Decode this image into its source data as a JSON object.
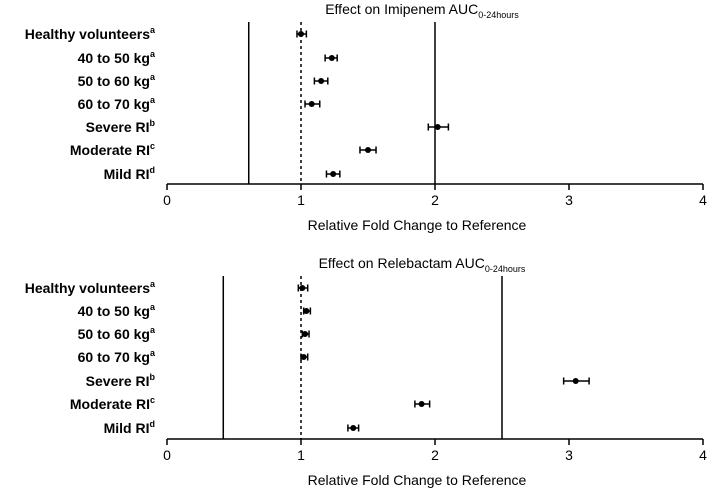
{
  "chart_data": [
    {
      "type": "forest",
      "title": "Effect on Imipenem AUC",
      "title_subscript": "0-24hours",
      "xlabel": "Relative Fold Change to Reference",
      "xlim": [
        0,
        4
      ],
      "xticks": [
        "0",
        "1",
        "2",
        "3",
        "4"
      ],
      "reference_line": 1.0,
      "bound_lines": [
        0.61,
        2.0
      ],
      "categories": [
        {
          "label": "Healthy volunteers",
          "sup": "a"
        },
        {
          "label": "40 to 50 kg",
          "sup": "a"
        },
        {
          "label": "50 to 60 kg",
          "sup": "a"
        },
        {
          "label": "60 to 70 kg",
          "sup": "a"
        },
        {
          "label": "Severe RI",
          "sup": "b"
        },
        {
          "label": "Moderate RI",
          "sup": "c"
        },
        {
          "label": "Mild RI",
          "sup": "d"
        }
      ],
      "points": [
        {
          "estimate": 1.0,
          "lower": 0.97,
          "upper": 1.04
        },
        {
          "estimate": 1.23,
          "lower": 1.18,
          "upper": 1.27
        },
        {
          "estimate": 1.15,
          "lower": 1.1,
          "upper": 1.2
        },
        {
          "estimate": 1.08,
          "lower": 1.03,
          "upper": 1.14
        },
        {
          "estimate": 2.02,
          "lower": 1.95,
          "upper": 2.1
        },
        {
          "estimate": 1.5,
          "lower": 1.44,
          "upper": 1.56
        },
        {
          "estimate": 1.24,
          "lower": 1.19,
          "upper": 1.29
        }
      ]
    },
    {
      "type": "forest",
      "title": "Effect on Relebactam AUC",
      "title_subscript": "0-24hours",
      "xlabel": "Relative Fold Change to Reference",
      "xlim": [
        0,
        4
      ],
      "xticks": [
        "0",
        "1",
        "2",
        "3",
        "4"
      ],
      "reference_line": 1.0,
      "bound_lines": [
        0.42,
        2.5
      ],
      "categories": [
        {
          "label": "Healthy volunteers",
          "sup": "a"
        },
        {
          "label": "40 to 50 kg",
          "sup": "a"
        },
        {
          "label": "50 to 60 kg",
          "sup": "a"
        },
        {
          "label": "60 to 70 kg",
          "sup": "a"
        },
        {
          "label": "Severe RI",
          "sup": "b"
        },
        {
          "label": "Moderate RI",
          "sup": "c"
        },
        {
          "label": "Mild RI",
          "sup": "d"
        }
      ],
      "points": [
        {
          "estimate": 1.01,
          "lower": 0.98,
          "upper": 1.05
        },
        {
          "estimate": 1.04,
          "lower": 1.02,
          "upper": 1.07
        },
        {
          "estimate": 1.03,
          "lower": 1.01,
          "upper": 1.06
        },
        {
          "estimate": 1.02,
          "lower": 1.0,
          "upper": 1.05
        },
        {
          "estimate": 3.05,
          "lower": 2.96,
          "upper": 3.15
        },
        {
          "estimate": 1.9,
          "lower": 1.85,
          "upper": 1.96
        },
        {
          "estimate": 1.39,
          "lower": 1.35,
          "upper": 1.43
        }
      ]
    }
  ]
}
